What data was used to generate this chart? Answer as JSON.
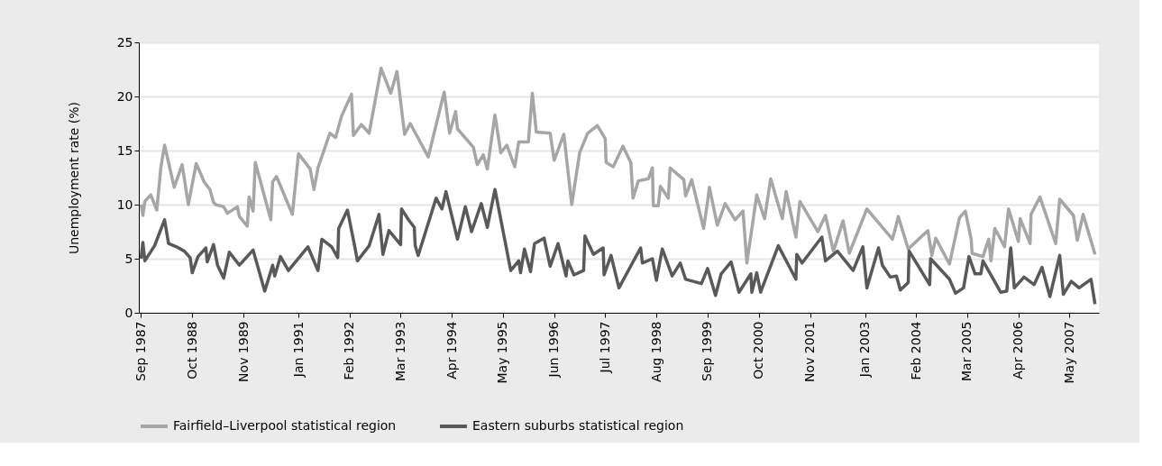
{
  "chart_data": {
    "type": "line",
    "ylabel": "Unemployment rate (%)",
    "xlim": [
      "1987-08-15",
      "2007-12-15"
    ],
    "ylim": [
      0,
      25
    ],
    "yticks": [
      0,
      5,
      10,
      15,
      20,
      25
    ],
    "xticks": [
      {
        "value": "1987-09",
        "label": "Sep 1987"
      },
      {
        "value": "1988-10",
        "label": "Oct 1988"
      },
      {
        "value": "1989-11",
        "label": "Nov 1989"
      },
      {
        "value": "1991-01",
        "label": "Jan 1991"
      },
      {
        "value": "1992-02",
        "label": "Feb 1992"
      },
      {
        "value": "1993-03",
        "label": "Mar 1993"
      },
      {
        "value": "1994-04",
        "label": "Apr 1994"
      },
      {
        "value": "1995-05",
        "label": "May 1995"
      },
      {
        "value": "1996-06",
        "label": "Jun 1996"
      },
      {
        "value": "1997-07",
        "label": "Jul 1997"
      },
      {
        "value": "1998-08",
        "label": "Aug 1998"
      },
      {
        "value": "1999-09",
        "label": "Sep 1999"
      },
      {
        "value": "2000-10",
        "label": "Oct 2000"
      },
      {
        "value": "2001-11",
        "label": "Nov 2001"
      },
      {
        "value": "2003-01",
        "label": "Jan 2003"
      },
      {
        "value": "2004-02",
        "label": "Feb 2004"
      },
      {
        "value": "2005-03",
        "label": "Mar 2005"
      },
      {
        "value": "2006-04",
        "label": "Apr 2006"
      },
      {
        "value": "2007-05",
        "label": "May 2007"
      }
    ],
    "grid": "y",
    "legend": "bottom",
    "marker": "none",
    "line_style": "solid",
    "series": [
      {
        "name": "Fairfield–Liverpool statistical region",
        "color": "#a6a6a6",
        "x": [
          "1987-09-01",
          "1987-09-15",
          "1987-10-01",
          "1987-11-15",
          "1988-01-01",
          "1988-02-01",
          "1988-03-01",
          "1988-05-15",
          "1988-07-15",
          "1988-09-01",
          "1988-11-01",
          "1989-01-01",
          "1989-02-15",
          "1989-03-15",
          "1989-04-01",
          "1989-06-01",
          "1989-07-01",
          "1989-09-15",
          "1989-10-01",
          "1989-12-01",
          "1989-12-15",
          "1990-01-15",
          "1990-02-01",
          "1990-06-01",
          "1990-06-15",
          "1990-07-15",
          "1990-11-15",
          "1991-01-01",
          "1991-04-01",
          "1991-05-01",
          "1991-06-01",
          "1991-09-01",
          "1991-10-15",
          "1991-12-01",
          "1992-02-15",
          "1992-03-01",
          "1992-05-01",
          "1992-07-01",
          "1992-10-01",
          "1992-12-15",
          "1993-02-01",
          "1993-04-01",
          "1993-05-15",
          "1993-10-01",
          "1994-02-01",
          "1994-03-15",
          "1994-05-01",
          "1994-05-15",
          "1994-09-15",
          "1994-10-15",
          "1994-12-01",
          "1995-01-01",
          "1995-03-01",
          "1995-04-15",
          "1995-06-01",
          "1995-08-01",
          "1995-09-01",
          "1995-11-15",
          "1995-12-15",
          "1996-01-15",
          "1996-05-01",
          "1996-06-01",
          "1996-08-15",
          "1996-10-15",
          "1996-12-15",
          "1997-02-15",
          "1997-05-01",
          "1997-07-01",
          "1997-07-08",
          "1997-09-01",
          "1997-11-15",
          "1998-01-15",
          "1998-02-01",
          "1998-03-15",
          "1998-06-01",
          "1998-07-01",
          "1998-07-08",
          "1998-08-15",
          "1998-09-01",
          "1998-11-01",
          "1998-11-15",
          "1999-03-01",
          "1999-03-15",
          "1999-05-01",
          "1999-08-01",
          "1999-09-01",
          "1999-09-15",
          "1999-11-15",
          "2000-01-15",
          "2000-04-01",
          "2000-06-01",
          "2000-07-01",
          "2000-09-15",
          "2000-11-15",
          "2001-01-01",
          "2001-04-01",
          "2001-05-01",
          "2001-07-15",
          "2001-08-15",
          "2002-01-01",
          "2002-03-01",
          "2002-05-01",
          "2002-07-15",
          "2002-09-01",
          "2003-01-15",
          "2003-08-01",
          "2003-09-01",
          "2003-09-15",
          "2003-12-01",
          "2004-05-01",
          "2004-06-01",
          "2004-07-01",
          "2004-10-15",
          "2005-01-01",
          "2005-02-15",
          "2005-04-01",
          "2005-04-08",
          "2005-07-01",
          "2005-08-15",
          "2005-09-01",
          "2005-10-01",
          "2005-12-15",
          "2006-01-15",
          "2006-04-01",
          "2006-04-15",
          "2006-07-01",
          "2006-07-08",
          "2006-09-15",
          "2007-01-15",
          "2007-02-15",
          "2007-06-01",
          "2007-07-01",
          "2007-08-15",
          "2007-11-15"
        ],
        "values": [
          10.0,
          9.0,
          10.3,
          10.9,
          9.5,
          13.4,
          15.5,
          11.6,
          13.7,
          10.0,
          13.8,
          12.1,
          11.4,
          10.2,
          10.0,
          9.8,
          9.2,
          9.8,
          8.9,
          8.0,
          10.7,
          9.4,
          13.9,
          8.6,
          12.1,
          12.6,
          9.1,
          14.7,
          13.3,
          11.4,
          13.4,
          16.6,
          16.2,
          18.2,
          20.2,
          16.4,
          17.4,
          16.6,
          22.6,
          20.3,
          22.3,
          16.5,
          17.5,
          14.4,
          20.4,
          16.6,
          18.6,
          17.0,
          15.3,
          13.7,
          14.6,
          13.3,
          18.3,
          14.8,
          15.5,
          13.5,
          15.8,
          15.8,
          20.3,
          16.7,
          16.6,
          14.1,
          16.5,
          10.0,
          14.8,
          16.6,
          17.3,
          16.1,
          13.9,
          13.5,
          15.4,
          13.9,
          10.6,
          12.2,
          12.4,
          13.4,
          9.9,
          9.9,
          11.7,
          10.6,
          13.4,
          12.3,
          10.8,
          12.3,
          7.8,
          10.3,
          11.6,
          8.1,
          10.1,
          8.6,
          9.4,
          4.6,
          10.9,
          8.7,
          12.4,
          8.7,
          11.2,
          7.0,
          10.3,
          7.5,
          9.0,
          5.7,
          8.5,
          5.5,
          9.6,
          6.8,
          8.2,
          8.9,
          5.9,
          7.6,
          5.3,
          6.9,
          4.5,
          8.8,
          9.4,
          6.8,
          5.5,
          5.2,
          6.8,
          4.8,
          7.8,
          6.1,
          9.6,
          6.6,
          8.7,
          6.4,
          9.1,
          10.7,
          6.4,
          10.5,
          9.0,
          6.7,
          9.1,
          5.4
        ]
      },
      {
        "name": "Eastern suburbs statistical region",
        "color": "#595959",
        "x": [
          "1987-09-01",
          "1987-09-15",
          "1987-10-01",
          "1987-12-15",
          "1988-03-01",
          "1988-04-01",
          "1988-06-01",
          "1988-08-01",
          "1988-09-15",
          "1988-10-01",
          "1988-11-15",
          "1989-01-15",
          "1989-01-25",
          "1989-03-15",
          "1989-04-15",
          "1989-06-01",
          "1989-07-15",
          "1989-10-01",
          "1990-01-15",
          "1990-04-15",
          "1990-06-15",
          "1990-07-01",
          "1990-08-15",
          "1990-10-15",
          "1991-03-15",
          "1991-06-01",
          "1991-07-01",
          "1991-09-15",
          "1991-11-01",
          "1991-11-08",
          "1992-01-15",
          "1992-03-15",
          "1992-04-01",
          "1992-07-01",
          "1992-09-15",
          "1992-10-15",
          "1992-12-01",
          "1993-03-01",
          "1993-03-08",
          "1993-05-01",
          "1993-06-15",
          "1993-06-22",
          "1993-07-15",
          "1993-12-01",
          "1994-01-15",
          "1994-02-15",
          "1994-05-15",
          "1994-07-15",
          "1994-09-01",
          "1994-11-15",
          "1995-01-01",
          "1995-03-01",
          "1995-07-01",
          "1995-09-01",
          "1995-09-15",
          "1995-10-15",
          "1995-12-01",
          "1996-01-01",
          "1996-03-15",
          "1996-05-01",
          "1996-07-01",
          "1996-09-01",
          "1996-09-15",
          "1996-11-01",
          "1997-01-15",
          "1997-01-25",
          "1997-04-01",
          "1997-06-15",
          "1997-06-22",
          "1997-08-15",
          "1997-10-15",
          "1998-04-01",
          "1998-04-15",
          "1998-07-01",
          "1998-08-01",
          "1998-09-15",
          "1998-12-01",
          "1999-02-01",
          "1999-03-15",
          "1999-07-15",
          "1999-09-01",
          "1999-11-01",
          "1999-12-15",
          "2000-03-01",
          "2000-05-01",
          "2000-08-01",
          "2000-08-08",
          "2000-09-15",
          "2000-10-15",
          "2001-03-01",
          "2001-07-15",
          "2001-07-22",
          "2001-09-01",
          "2002-02-01",
          "2002-03-01",
          "2002-06-01",
          "2002-10-01",
          "2002-12-15",
          "2003-01-15",
          "2003-04-15",
          "2003-05-15",
          "2003-07-15",
          "2003-09-01",
          "2003-10-01",
          "2003-12-01",
          "2003-12-08",
          "2004-05-15",
          "2004-05-22",
          "2004-10-15",
          "2004-12-01",
          "2005-02-01",
          "2005-03-15",
          "2005-05-01",
          "2005-06-15",
          "2005-07-01",
          "2005-11-15",
          "2006-01-01",
          "2006-02-01",
          "2006-03-01",
          "2006-05-15",
          "2006-08-01",
          "2006-10-01",
          "2006-12-01",
          "2007-02-15",
          "2007-03-15",
          "2007-05-15",
          "2007-07-15",
          "2007-10-15",
          "2007-11-15"
        ],
        "values": [
          5.0,
          6.5,
          4.8,
          6.2,
          8.6,
          6.4,
          6.1,
          5.7,
          5.1,
          3.7,
          5.2,
          6.0,
          4.7,
          6.3,
          4.4,
          3.2,
          5.6,
          4.4,
          5.8,
          2.0,
          4.4,
          3.4,
          5.2,
          3.9,
          6.1,
          3.9,
          6.8,
          6.1,
          5.1,
          7.8,
          9.5,
          5.9,
          4.8,
          6.2,
          9.1,
          5.4,
          7.6,
          6.3,
          9.6,
          8.6,
          7.9,
          6.2,
          5.3,
          10.6,
          9.6,
          11.2,
          6.8,
          9.8,
          7.5,
          10.1,
          7.9,
          11.4,
          3.9,
          4.8,
          3.7,
          5.9,
          3.8,
          6.4,
          6.9,
          4.3,
          6.4,
          3.4,
          4.8,
          3.5,
          3.9,
          7.1,
          5.4,
          6.0,
          3.5,
          5.3,
          2.3,
          6.0,
          4.6,
          5.0,
          3.0,
          5.9,
          3.4,
          4.6,
          3.1,
          2.7,
          4.1,
          1.6,
          3.6,
          4.7,
          1.9,
          3.6,
          1.9,
          3.7,
          1.9,
          6.2,
          3.1,
          5.4,
          4.6,
          7.0,
          4.8,
          5.7,
          3.9,
          6.1,
          2.3,
          6.0,
          4.4,
          3.3,
          3.4,
          2.1,
          2.8,
          5.7,
          2.6,
          5.0,
          3.1,
          1.8,
          2.3,
          5.2,
          3.6,
          3.6,
          4.8,
          1.9,
          2.0,
          6.0,
          2.3,
          3.3,
          2.6,
          4.2,
          1.5,
          5.3,
          1.7,
          2.9,
          2.3,
          3.1,
          0.8
        ]
      }
    ]
  }
}
